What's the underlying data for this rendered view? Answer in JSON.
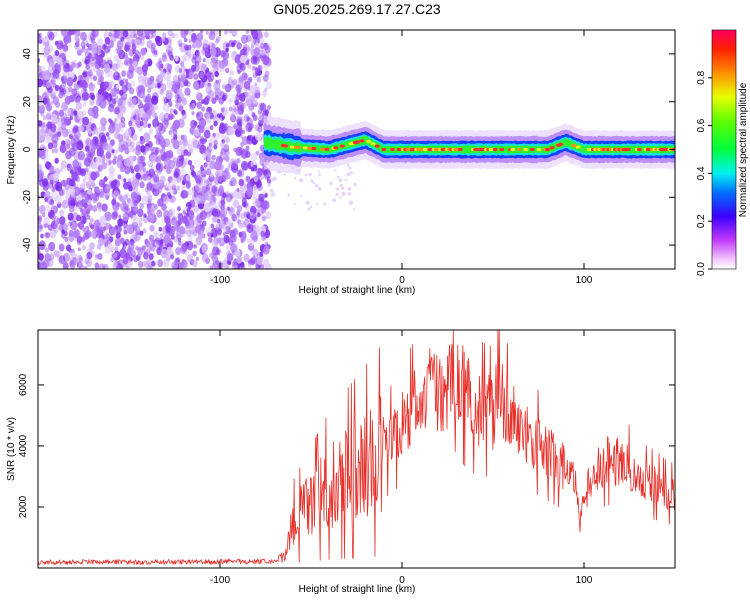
{
  "title": "GN05.2025.269.17.27.C23",
  "colors": {
    "snr_line": "#e8302a",
    "axis": "#000000",
    "background": "#ffffff",
    "noise_purple": "#8a3cf0",
    "noise_light": "#d6b8fb",
    "band_blue": "#1440ff",
    "band_cyan": "#19e0d8",
    "band_green": "#2ef02e",
    "band_core": "#ff2e2e"
  },
  "chart_data": [
    {
      "type": "heatmap",
      "name": "spectrogram",
      "xlabel": "Height of straight line (km)",
      "ylabel": "Frequency (Hz)",
      "xlim": [
        -200,
        150
      ],
      "ylim": [
        -50,
        50
      ],
      "x_ticks": [
        -100,
        0,
        100
      ],
      "y_ticks": [
        -40,
        -20,
        0,
        20,
        40
      ],
      "noise_region_x": [
        -200,
        -73
      ],
      "signal_band": {
        "x_start": -76,
        "x_end": 150,
        "center_frequency": [
          {
            "x": -76,
            "f": 3
          },
          {
            "x": -60,
            "f": 1
          },
          {
            "x": -40,
            "f": 0
          },
          {
            "x": -30,
            "f": 2
          },
          {
            "x": -20,
            "f": 4
          },
          {
            "x": -10,
            "f": 0
          },
          {
            "x": 0,
            "f": 0
          },
          {
            "x": 50,
            "f": 0
          },
          {
            "x": 80,
            "f": 0
          },
          {
            "x": 90,
            "f": 3
          },
          {
            "x": 100,
            "f": 0
          },
          {
            "x": 150,
            "f": 0
          }
        ]
      },
      "colorbar": {
        "label": "Normalized spectral amplitude",
        "range": [
          0,
          1
        ],
        "ticks": [
          0.0,
          0.2,
          0.4,
          0.6,
          0.8
        ],
        "tick_labels": [
          "0.0",
          "0.2",
          "0.4",
          "0.6",
          "0.8"
        ]
      }
    },
    {
      "type": "line",
      "name": "snr",
      "xlabel": "Height of straight line (km)",
      "ylabel": "SNR (10 * v/v)",
      "xlim": [
        -200,
        150
      ],
      "ylim": [
        0,
        7800
      ],
      "x_ticks": [
        -100,
        0,
        100
      ],
      "y_ticks": [
        2000,
        4000,
        6000
      ],
      "series": [
        {
          "name": "SNR",
          "x": [
            -200,
            -180,
            -160,
            -140,
            -120,
            -100,
            -80,
            -70,
            -64,
            -60,
            -55,
            -50,
            -45,
            -40,
            -35,
            -30,
            -25,
            -20,
            -15,
            -10,
            -5,
            0,
            5,
            10,
            15,
            20,
            25,
            28,
            30,
            35,
            40,
            45,
            50,
            53,
            55,
            60,
            65,
            70,
            75,
            80,
            85,
            90,
            95,
            98,
            100,
            105,
            110,
            115,
            120,
            125,
            130,
            135,
            140,
            145,
            150
          ],
          "values": [
            180,
            190,
            200,
            190,
            200,
            210,
            220,
            230,
            400,
            1500,
            1800,
            2100,
            2400,
            2700,
            2900,
            3100,
            3300,
            3500,
            3700,
            3900,
            4300,
            4700,
            5100,
            5500,
            5800,
            5600,
            5900,
            7000,
            6300,
            5700,
            5300,
            5200,
            5100,
            6200,
            5600,
            4900,
            4600,
            4400,
            4100,
            3800,
            3500,
            3200,
            2900,
            1200,
            2400,
            3100,
            3400,
            3600,
            3500,
            3300,
            3000,
            2800,
            2700,
            2500,
            2400
          ]
        }
      ]
    }
  ]
}
